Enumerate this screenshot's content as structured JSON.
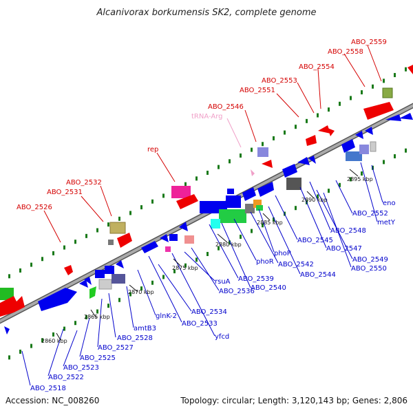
{
  "title": "Alcanivorax borkumensis SK2, complete genome",
  "footer": {
    "accession": "Accession: NC_008260",
    "summary": "Topology: circular; Length: 3,120,143 bp; Genes: 2,806"
  },
  "colors": {
    "backbone": "#888888",
    "dot_green": "#1a7a1a",
    "label_red": "#d40000",
    "label_blue": "#0000cc",
    "label_pink": "#f0a0c8",
    "gene_blue": "#0000ee",
    "gene_red": "#ee0000"
  },
  "kbp_labels": [
    "2860 kbp",
    "2865 kbp",
    "2870 kbp",
    "2875 kbp",
    "2880 kbp",
    "2885 kbp",
    "2890 kbp",
    "2895 kbp"
  ],
  "labels_top": [
    "ABO_2526",
    "ABO_2531",
    "ABO_2532",
    "rep",
    "ABO_2546",
    "tRNA-Arg",
    "ABO_2551",
    "ABO_2553",
    "ABO_2554",
    "ABO_2558",
    "ABO_2559"
  ],
  "labels_bottom": [
    "ABO_2518",
    "ABO_2522",
    "ABO_2523",
    "ABO_2525",
    "ABO_2527",
    "ABO_2528",
    "amtB3",
    "glnK-2",
    "ABO_2533",
    "ABO_2534",
    "yfcd",
    "rsuA",
    "ABO_2536",
    "ABO_2539",
    "ABO_2540",
    "phoR",
    "ABO_2542",
    "phoP",
    "ABO_2544",
    "ABO_2545",
    "ABO_2547",
    "ABO_2548",
    "ABO_2549",
    "ABO_2550",
    "ABO_2552",
    "metY",
    "eno"
  ]
}
